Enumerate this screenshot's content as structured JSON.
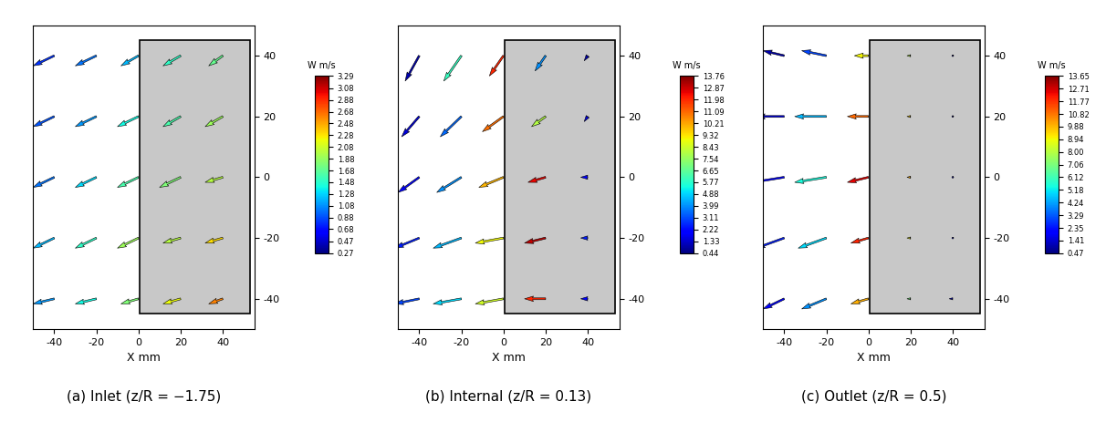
{
  "chart_data": [
    {
      "type": "quiver",
      "title": "(a) Inlet (z/R = −1.75)",
      "x_label": "X mm",
      "x": [
        -40,
        -20,
        0,
        20,
        40
      ],
      "y": [
        -40,
        -20,
        0,
        20,
        40
      ],
      "u": [
        [
          -6,
          -6,
          -5,
          -5,
          -4
        ],
        [
          -6,
          -6,
          -6,
          -5,
          -5
        ],
        [
          -6,
          -6,
          -6,
          -6,
          -5
        ],
        [
          -6,
          -6,
          -6,
          -5,
          -5
        ],
        [
          -6,
          -6,
          -5,
          -5,
          -4
        ]
      ],
      "v": [
        [
          -1,
          -1,
          -1,
          -1,
          -1
        ],
        [
          -2,
          -2,
          -2,
          -1,
          -1
        ],
        [
          -2,
          -2,
          -2,
          -2,
          -1
        ],
        [
          -2,
          -2,
          -2,
          -2,
          -2
        ],
        [
          -2,
          -2,
          -2,
          -2,
          -2
        ]
      ],
      "w": [
        [
          1.1,
          1.4,
          1.8,
          2.2,
          2.6
        ],
        [
          1.2,
          1.5,
          1.9,
          2.0,
          2.3
        ],
        [
          1.0,
          1.3,
          1.6,
          1.8,
          2.0
        ],
        [
          0.9,
          1.1,
          1.4,
          1.6,
          1.9
        ],
        [
          0.8,
          1.0,
          1.2,
          1.5,
          1.7
        ]
      ],
      "xlim": [
        -50,
        55
      ],
      "ylim": [
        -50,
        50
      ],
      "xticks": [
        -40,
        -20,
        0,
        20,
        40
      ],
      "yticks": [
        -40,
        -20,
        0,
        20,
        40
      ],
      "colorbar": {
        "label": "W m/s",
        "range": [
          0.27,
          3.29
        ],
        "ticks": [
          0.27,
          0.47,
          0.68,
          0.88,
          1.08,
          1.28,
          1.48,
          1.68,
          1.88,
          2.08,
          2.28,
          2.48,
          2.68,
          2.88,
          3.08,
          3.29
        ]
      }
    },
    {
      "type": "quiver",
      "title": "(b) Internal (z/R = 0.13)",
      "x_label": "X mm",
      "x": [
        -40,
        -20,
        0,
        20,
        40
      ],
      "y": [
        -40,
        -20,
        0,
        20,
        40
      ],
      "u": [
        [
          -7,
          -8,
          -8,
          -6,
          -2
        ],
        [
          -7,
          -8,
          -8,
          -6,
          -2
        ],
        [
          -6,
          -7,
          -7,
          -5,
          -2
        ],
        [
          -5,
          -6,
          -6,
          -4,
          -1
        ],
        [
          -4,
          -5,
          -4,
          -3,
          -1
        ]
      ],
      "v": [
        [
          -1,
          -1,
          -1,
          0,
          0
        ],
        [
          -2,
          -2,
          -1,
          -1,
          0
        ],
        [
          -3,
          -3,
          -2,
          -1,
          0
        ],
        [
          -4,
          -4,
          -3,
          -2,
          -1
        ],
        [
          -5,
          -5,
          -4,
          -3,
          -1
        ]
      ],
      "w": [
        [
          3.0,
          5.0,
          8.5,
          12.0,
          2.0
        ],
        [
          2.5,
          4.5,
          9.0,
          13.0,
          2.5
        ],
        [
          2.0,
          4.0,
          10.0,
          12.5,
          2.0
        ],
        [
          1.5,
          3.5,
          11.0,
          8.0,
          1.5
        ],
        [
          1.0,
          6.0,
          12.0,
          4.0,
          1.0
        ]
      ],
      "xlim": [
        -50,
        55
      ],
      "ylim": [
        -50,
        50
      ],
      "xticks": [
        -40,
        -20,
        0,
        20,
        40
      ],
      "yticks": [
        -40,
        -20,
        0,
        20,
        40
      ],
      "colorbar": {
        "label": "W m/s",
        "range": [
          0.44,
          13.76
        ],
        "ticks": [
          0.44,
          1.33,
          2.22,
          3.11,
          3.99,
          4.88,
          5.77,
          6.65,
          7.54,
          8.43,
          9.32,
          10.21,
          11.09,
          11.98,
          12.87,
          13.76
        ]
      }
    },
    {
      "type": "quiver",
      "title": "(c) Outlet (z/R = 0.5)",
      "x_label": "X mm",
      "x": [
        -40,
        -20,
        0,
        20,
        40
      ],
      "y": [
        -40,
        -20,
        0,
        20,
        40
      ],
      "u": [
        [
          -6,
          -7,
          -5,
          -1,
          -1
        ],
        [
          -8,
          -8,
          -5,
          -1,
          0
        ],
        [
          -9,
          -9,
          -6,
          -1,
          0
        ],
        [
          -8,
          -9,
          -6,
          -1,
          0
        ],
        [
          -6,
          -7,
          -4,
          -1,
          0
        ]
      ],
      "v": [
        [
          -2,
          -2,
          -1,
          0,
          0
        ],
        [
          -2,
          -2,
          -1,
          0,
          0
        ],
        [
          -1,
          -1,
          -1,
          0,
          0
        ],
        [
          0,
          0,
          0,
          0,
          0
        ],
        [
          1,
          1,
          0,
          0,
          0
        ]
      ],
      "w": [
        [
          2.0,
          4.0,
          10.0,
          7.0,
          1.5
        ],
        [
          2.5,
          5.0,
          12.0,
          9.0,
          1.5
        ],
        [
          2.0,
          5.5,
          12.5,
          10.0,
          1.0
        ],
        [
          1.5,
          4.5,
          11.0,
          9.5,
          1.0
        ],
        [
          1.0,
          3.0,
          9.0,
          8.0,
          0.8
        ]
      ],
      "xlim": [
        -50,
        55
      ],
      "ylim": [
        -50,
        50
      ],
      "xticks": [
        -40,
        -20,
        0,
        20,
        40
      ],
      "yticks": [
        -40,
        -20,
        0,
        20,
        40
      ],
      "colorbar": {
        "label": "W m/s",
        "range": [
          0.47,
          13.65
        ],
        "ticks": [
          0.47,
          1.41,
          2.35,
          3.29,
          4.24,
          5.18,
          6.12,
          7.06,
          {
            "value": 8.0,
            "label": "8.00"
          },
          8.94,
          9.88,
          10.82,
          11.77,
          12.71,
          13.65
        ]
      }
    }
  ]
}
